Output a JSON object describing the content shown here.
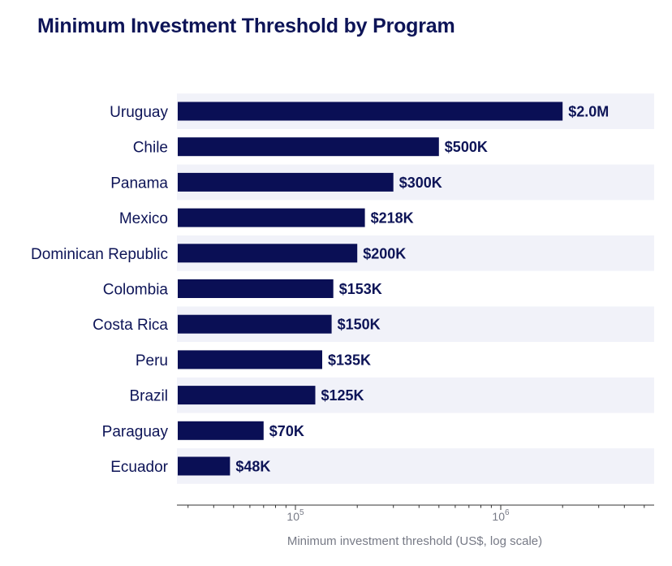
{
  "chart_data": {
    "type": "bar",
    "orientation": "horizontal",
    "title": "Minimum Investment Threshold by Program",
    "xlabel": "Minimum investment threshold (US$, log scale)",
    "ylabel": "",
    "xscale": "log",
    "xlim": [
      30000,
      5000000
    ],
    "x_ticks": [
      {
        "value": 100000,
        "base": "10",
        "exp": "5"
      },
      {
        "value": 1000000,
        "base": "10",
        "exp": "6"
      }
    ],
    "categories": [
      "Uruguay",
      "Chile",
      "Panama",
      "Mexico",
      "Dominican Republic",
      "Colombia",
      "Costa Rica",
      "Peru",
      "Brazil",
      "Paraguay",
      "Ecuador"
    ],
    "values": [
      2000000,
      500000,
      300000,
      218000,
      200000,
      153000,
      150000,
      135000,
      125000,
      70000,
      48000
    ],
    "value_labels": [
      "$2.0M",
      "$500K",
      "$300K",
      "$218K",
      "$200K",
      "$153K",
      "$150K",
      "$135K",
      "$125K",
      "$70K",
      "$48K"
    ],
    "grid": false,
    "legend": "none",
    "colors": {
      "bar": "#0a0f55",
      "band": "#f1f2f9",
      "text": "#0d1457",
      "axis": "#777a86"
    }
  }
}
